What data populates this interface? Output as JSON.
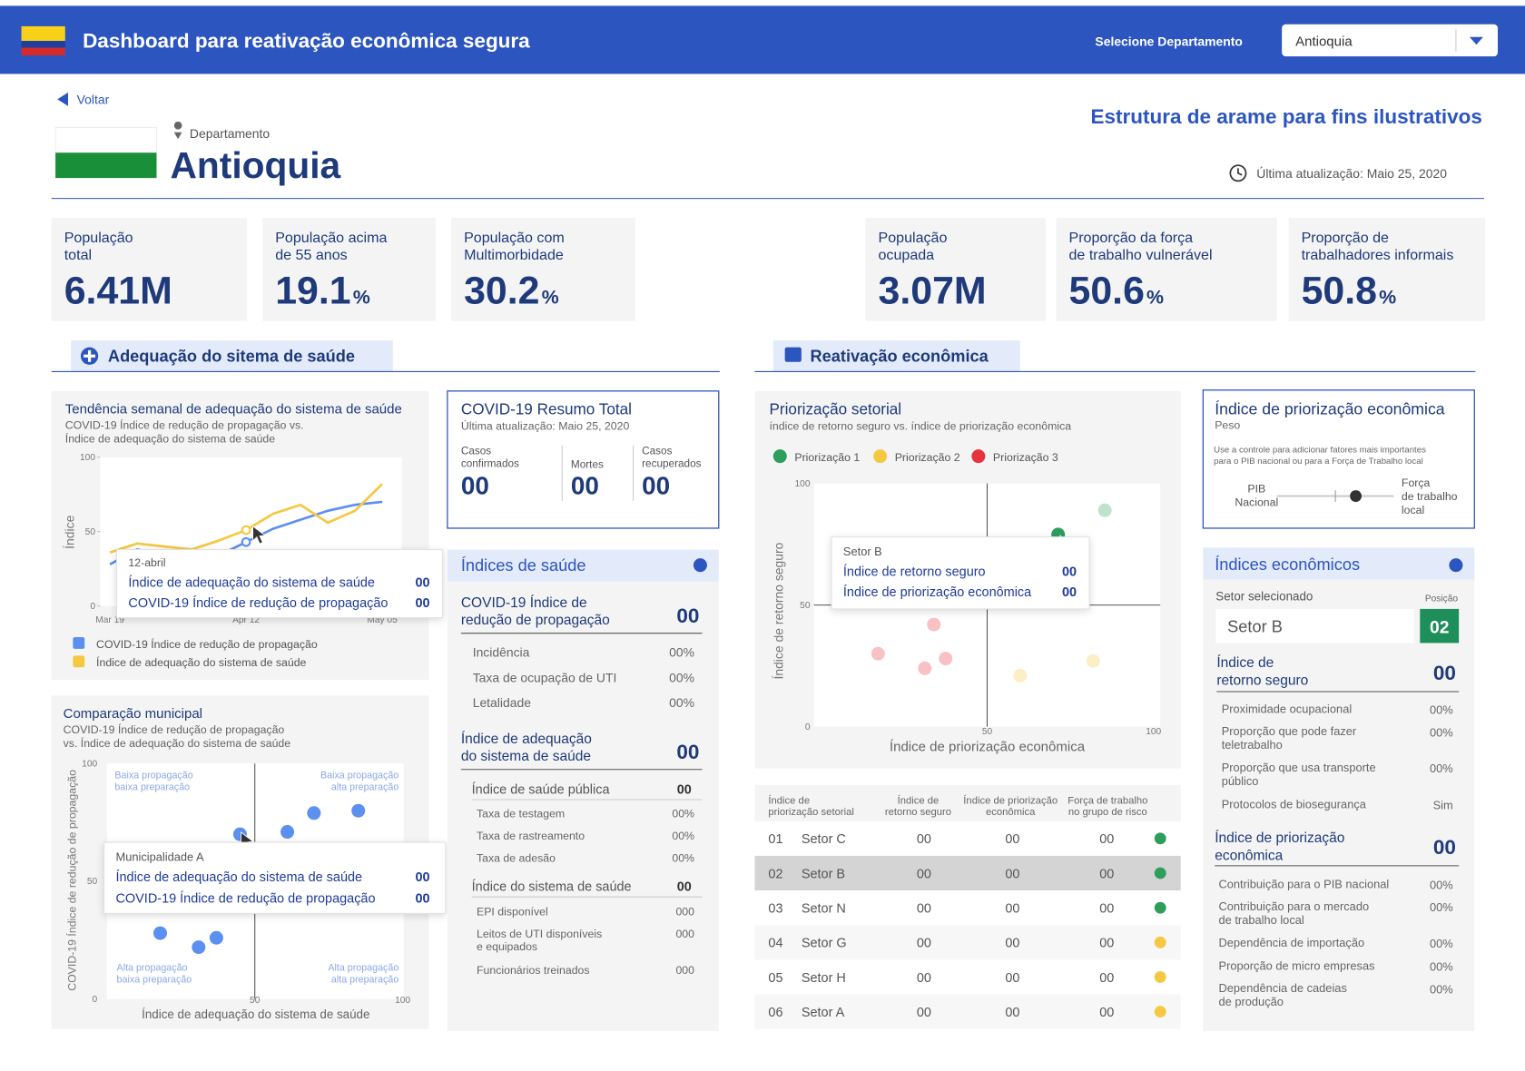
{
  "header": {
    "title": "Dashboard para reativação econômica segura",
    "select_label": "Selecione Departamento",
    "select_value": "Antioquia"
  },
  "back": "Voltar",
  "watermark": "Estrutura de arame para fins ilustrativos",
  "department": {
    "label": "Departamento",
    "name": "Antioquia"
  },
  "updated": "Última atualização: Maio 25, 2020",
  "kpis": [
    {
      "label": [
        "População",
        "total"
      ],
      "value": "6.41M"
    },
    {
      "label": [
        "População acima",
        "de 55 anos"
      ],
      "value": "19.1",
      "unit": "%"
    },
    {
      "label": [
        "População com",
        "Multimorbidade"
      ],
      "value": "30.2",
      "unit": "%"
    },
    {
      "label": [
        "População",
        "ocupada"
      ],
      "value": "3.07M"
    },
    {
      "label": [
        "Proporção da força",
        "de trabalho vulnerável"
      ],
      "value": "50.6",
      "unit": "%"
    },
    {
      "label": [
        "Proporção de",
        "trabalhadores informais"
      ],
      "value": "50.8",
      "unit": "%"
    }
  ],
  "sections": {
    "health": "Adequação do sitema de saúde",
    "economy": "Reativação econômica"
  },
  "trend": {
    "title": "Tendência semanal de adequação do sistema de saúde",
    "subtitle": [
      "COVID-19 Índice de redução de propagação vs.",
      "Índice de adequação do sistema de saúde"
    ],
    "y_label": "Índice",
    "ylim": [
      0,
      100
    ],
    "yticks": [
      0,
      50,
      100
    ],
    "categories": [
      "Mar 19",
      null,
      null,
      null,
      null,
      "Apr 12",
      null,
      null,
      null,
      null,
      "May 05"
    ],
    "series": [
      {
        "name": "COVID-19 Índice de redução de propagação",
        "color": "#5b8ff0",
        "values": [
          28,
          38,
          34,
          30,
          34,
          43,
          52,
          58,
          64,
          68,
          70
        ]
      },
      {
        "name": "Índice de adequação do sistema de saúde",
        "color": "#f5c842",
        "values": [
          36,
          42,
          40,
          38,
          44,
          51,
          62,
          68,
          56,
          64,
          82
        ]
      }
    ],
    "tooltip": {
      "title": "12-abril",
      "rows": [
        {
          "label": "Índice de adequação do sistema de saúde",
          "value": "00"
        },
        {
          "label": "COVID-19 Índice de redução de propagação",
          "value": "00"
        }
      ]
    }
  },
  "municipal": {
    "title": "Comparação municipal",
    "subtitle": [
      "COVID-19 Índice de redução de propagação",
      "vs. Índice de adequação do sistema de saúde"
    ],
    "x_label": "Índice de adequação do sistema de saúde",
    "y_label": "COVID-19 Índice de redução de propagação",
    "xlim": [
      0,
      100
    ],
    "ylim": [
      0,
      100
    ],
    "xticks": [
      50,
      100
    ],
    "yticks": [
      0,
      50,
      100
    ],
    "quadrants": [
      [
        "Baixa propagação",
        "baixa preparação"
      ],
      [
        "Baixa propagação",
        "alta preparação"
      ],
      [
        "Alta propagação",
        "baixa preparação"
      ],
      [
        "Alta propagação",
        "alta preparação"
      ]
    ],
    "color": "#5b8ff0",
    "x": [
      45,
      61,
      70,
      85,
      18,
      31,
      37
    ],
    "y": [
      70,
      71,
      79,
      80,
      28,
      22,
      26
    ],
    "tooltip": {
      "title": "Municipalidade A",
      "rows": [
        {
          "label": "Índice de adequação do sistema de saúde",
          "value": "00"
        },
        {
          "label": "COVID-19 Índice de redução de propagação",
          "value": "00"
        }
      ]
    }
  },
  "summary": {
    "title": "COVID-19 Resumo Total",
    "updated": "Última atualização: Maio 25, 2020",
    "items": [
      {
        "label": [
          "Casos",
          "confirmados"
        ],
        "value": "00"
      },
      {
        "label": [
          "Mortes"
        ],
        "value": "00"
      },
      {
        "label": [
          "Casos",
          "recuperados"
        ],
        "value": "00"
      }
    ]
  },
  "health": {
    "title": "Índices de saúde",
    "groups": [
      {
        "title": [
          "COVID-19 Índice de",
          "redução de propagação"
        ],
        "value": "00",
        "rows": [
          {
            "label": [
              "Incidência"
            ],
            "value": "00%"
          },
          {
            "label": [
              "Taxa de ocupação de UTI"
            ],
            "value": "00%"
          },
          {
            "label": [
              "Letalidade"
            ],
            "value": "00%"
          }
        ]
      },
      {
        "title": [
          "Índice de adequação",
          "do sistema de saúde"
        ],
        "value": "00",
        "subgroups": [
          {
            "title": "Índice de saúde pública",
            "value": "00",
            "rows": [
              {
                "label": [
                  "Taxa de testagem"
                ],
                "value": "00%"
              },
              {
                "label": [
                  "Taxa de rastreamento"
                ],
                "value": "00%"
              },
              {
                "label": [
                  "Taxa de adesão"
                ],
                "value": "00%"
              }
            ]
          },
          {
            "title": "Índice do sistema de saúde",
            "value": "00",
            "rows": [
              {
                "label": [
                  "EPI disponível"
                ],
                "value": "000"
              },
              {
                "label": [
                  "Leitos de UTI disponíveis",
                  "e equipados"
                ],
                "value": "000"
              },
              {
                "label": [
                  "Funcionários treinados"
                ],
                "value": "000"
              }
            ]
          }
        ]
      }
    ]
  },
  "sector_chart": {
    "title": "Priorização setorial",
    "subtitle": "índice de retorno seguro vs. índice de priorização econômica",
    "x_label": "Índice de priorização econômica",
    "y_label": "Índice de retorno seguro",
    "xlim": [
      0,
      100
    ],
    "ylim": [
      0,
      100
    ],
    "xticks": [
      50,
      100
    ],
    "yticks": [
      0,
      50,
      100
    ],
    "series": [
      {
        "name": "Priorização 1",
        "color": "#2e9e5b",
        "x": [
          70.5,
          84
        ],
        "y": [
          79,
          89
        ]
      },
      {
        "name": "Priorização 2",
        "color": "#f5c842",
        "x": [
          59.5,
          80.6
        ],
        "y": [
          21,
          27
        ]
      },
      {
        "name": "Priorização 3",
        "color": "#e8323c",
        "x": [
          18.5,
          34.6,
          32,
          38
        ],
        "y": [
          30,
          42,
          24,
          28
        ]
      }
    ],
    "tooltip": {
      "title": "Setor B",
      "rows": [
        {
          "label": "Índice de retorno seguro",
          "value": "00"
        },
        {
          "label": "Índice de priorização econômica",
          "value": "00"
        }
      ]
    }
  },
  "sector_table": {
    "headers": [
      [
        "Índice de",
        "priorização setorial"
      ],
      [
        "Índice de",
        "retorno seguro"
      ],
      [
        "Índice de priorização",
        "econômica"
      ],
      [
        "Força de trabalho",
        "no grupo de risco"
      ]
    ],
    "rows": [
      {
        "rank": "01",
        "sector": "Setor C",
        "values": [
          "00",
          "00",
          "00"
        ],
        "color": "#2e9e5b"
      },
      {
        "rank": "02",
        "sector": "Setor B",
        "values": [
          "00",
          "00",
          "00"
        ],
        "color": "#2e9e5b"
      },
      {
        "rank": "03",
        "sector": "Setor N",
        "values": [
          "00",
          "00",
          "00"
        ],
        "color": "#2e9e5b"
      },
      {
        "rank": "04",
        "sector": "Setor G",
        "values": [
          "00",
          "00",
          "00"
        ],
        "color": "#f5c842"
      },
      {
        "rank": "05",
        "sector": "Setor H",
        "values": [
          "00",
          "00",
          "00"
        ],
        "color": "#f5c842"
      },
      {
        "rank": "06",
        "sector": "Setor A",
        "values": [
          "00",
          "00",
          "00"
        ],
        "color": "#f5c842"
      }
    ]
  },
  "priority": {
    "title": "Índice de priorização econômica",
    "subtitle": "Peso",
    "note": [
      "Use a controle para adicionar fatores mais importantes",
      "para o PIB nacional ou para a Força de Trabalho local"
    ],
    "left": [
      "PIB",
      "Nacional"
    ],
    "right": [
      "Força",
      "de trabalho",
      "local"
    ]
  },
  "economic": {
    "title": "Índices econômicos",
    "selected_label": "Setor selecionado",
    "position_label": "Posição",
    "selected": "Setor B",
    "position": "02",
    "groups": [
      {
        "title": [
          "Índice de",
          "retorno seguro"
        ],
        "value": "00",
        "rows": [
          {
            "label": [
              "Proximidade ocupacional"
            ],
            "value": "00%"
          },
          {
            "label": [
              "Proporção que pode fazer",
              "teletrabalho"
            ],
            "value": "00%"
          },
          {
            "label": [
              "Proporção que usa transporte",
              "público"
            ],
            "value": "00%"
          },
          {
            "label": [
              "Protocolos de biosegurança"
            ],
            "value": "Sim"
          }
        ]
      },
      {
        "title": [
          "Índice de priorização",
          "econômica"
        ],
        "value": "00",
        "rows": [
          {
            "label": [
              "Contribuição para o PIB nacional"
            ],
            "value": "00%"
          },
          {
            "label": [
              "Contribuição para o mercado",
              "de trabalho local"
            ],
            "value": "00%"
          },
          {
            "label": [
              "Dependência de importação"
            ],
            "value": "00%"
          },
          {
            "label": [
              "Proporção de micro empresas"
            ],
            "value": "00%"
          },
          {
            "label": [
              "Dependência de cadeias",
              "de produção"
            ],
            "value": "00%"
          }
        ]
      }
    ]
  }
}
